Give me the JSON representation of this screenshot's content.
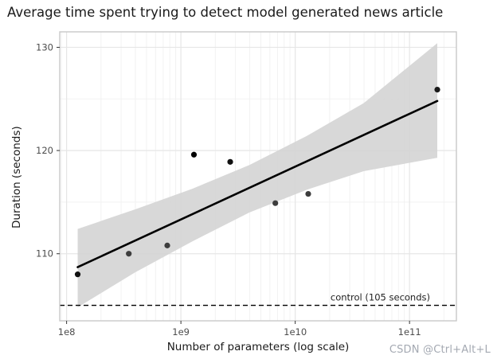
{
  "title": "Average time spent trying to detect model generated news article",
  "watermark": "CSDN @Ctrl+Alt+L",
  "chart_data": {
    "type": "scatter",
    "title": "Average time spent trying to detect model generated news article",
    "xlabel": "Number of parameters (log scale)",
    "ylabel": "Duration (seconds)",
    "x_scale": "log10",
    "xlim_log10": [
      7.94,
      11.41
    ],
    "ylim": [
      103.5,
      131.5
    ],
    "grid": "on",
    "x_ticks": [
      {
        "value": 100000000.0,
        "label": "1e8"
      },
      {
        "value": 1000000000.0,
        "label": "1e9"
      },
      {
        "value": 10000000000.0,
        "label": "1e10"
      },
      {
        "value": 100000000000.0,
        "label": "1e11"
      }
    ],
    "y_ticks": [
      {
        "value": 110,
        "label": "110"
      },
      {
        "value": 120,
        "label": "120"
      },
      {
        "value": 130,
        "label": "130"
      }
    ],
    "y_minor": [
      105,
      115,
      125
    ],
    "points": [
      {
        "params": 125000000.0,
        "seconds": 108.0,
        "color": "#111111"
      },
      {
        "params": 350000000.0,
        "seconds": 110.0,
        "color": "#3d3d3d"
      },
      {
        "params": 760000000.0,
        "seconds": 110.8,
        "color": "#3d3d3d"
      },
      {
        "params": 1300000000.0,
        "seconds": 119.6,
        "color": "#000000"
      },
      {
        "params": 2700000000.0,
        "seconds": 118.9,
        "color": "#111111"
      },
      {
        "params": 6700000000.0,
        "seconds": 114.9,
        "color": "#3d3d3d"
      },
      {
        "params": 13000000000.0,
        "seconds": 115.8,
        "color": "#3d3d3d"
      },
      {
        "params": 175000000000.0,
        "seconds": 125.9,
        "color": "#1a1a1a"
      }
    ],
    "regression_line": {
      "x1": 125000000.0,
      "y1": 108.7,
      "x2": 175000000000.0,
      "y2": 124.8
    },
    "confidence_band": [
      {
        "x": 125000000.0,
        "upper": 112.4,
        "lower": 104.8
      },
      {
        "x": 398000000.0,
        "upper": 114.3,
        "lower": 108.2
      },
      {
        "x": 1260000000.0,
        "upper": 116.3,
        "lower": 111.2
      },
      {
        "x": 3980000000.0,
        "upper": 118.6,
        "lower": 114.0
      },
      {
        "x": 12600000000.0,
        "upper": 121.4,
        "lower": 116.2
      },
      {
        "x": 39800000000.0,
        "upper": 124.6,
        "lower": 118.0
      },
      {
        "x": 175000000000.0,
        "upper": 130.4,
        "lower": 119.3
      }
    ],
    "control_line": {
      "value": 105,
      "label": "control (105 seconds)"
    },
    "colors": {
      "point": "#1a1a1a",
      "regression_line": "#000000",
      "confidence_band": "#d4d4d4",
      "control_line": "#000000",
      "grid_major": "#e6e6e6",
      "grid_minor": "#f2f2f2",
      "panel_border": "#c9c9c9",
      "tick_label": "#4d4d4d",
      "watermark": "#a4a9b2"
    }
  }
}
